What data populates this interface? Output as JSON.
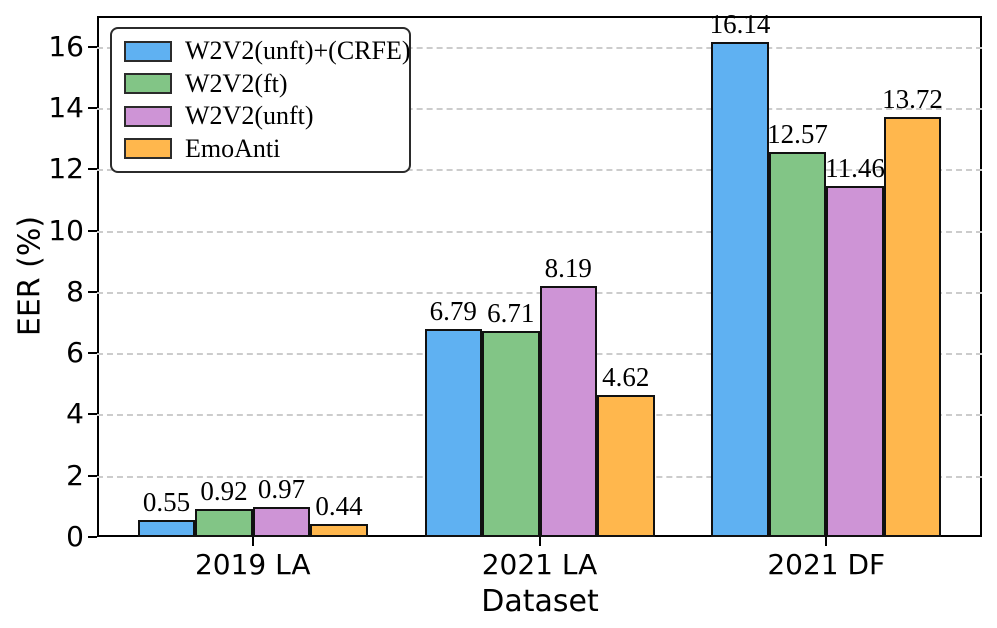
{
  "chart_data": {
    "type": "bar",
    "title": "",
    "xlabel": "Dataset",
    "ylabel": "EER (%)",
    "categories": [
      "2019 LA",
      "2021 LA",
      "2021 DF"
    ],
    "series": [
      {
        "name": "W2V2(unft)+(CRFE)",
        "color": "#5FB1F2",
        "values": [
          0.55,
          6.79,
          16.14
        ]
      },
      {
        "name": "W2V2(ft)",
        "color": "#82C586",
        "values": [
          0.92,
          6.71,
          12.57
        ]
      },
      {
        "name": "W2V2(unft)",
        "color": "#CE94D6",
        "values": [
          0.97,
          8.19,
          11.46
        ]
      },
      {
        "name": "EmoAnti",
        "color": "#FFB74D",
        "values": [
          0.44,
          4.62,
          13.72
        ]
      }
    ],
    "value_labels": [
      "0.55",
      "0.92",
      "0.97",
      "0.44",
      "6.79",
      "6.71",
      "8.19",
      "4.62",
      "16.14",
      "12.57",
      "11.46",
      "13.72"
    ],
    "yticks": [
      0,
      2,
      4,
      6,
      8,
      10,
      12,
      14,
      16
    ],
    "ylim": [
      0,
      17.0
    ],
    "grid": "horizontal-dashed",
    "grid_color": "#cccccc",
    "bar_edge_color": "#111111",
    "legend_position": "upper-left",
    "legend_entries": [
      "W2V2(unft)+(CRFE)",
      "W2V2(ft)",
      "W2V2(unft)",
      "EmoAnti"
    ]
  }
}
